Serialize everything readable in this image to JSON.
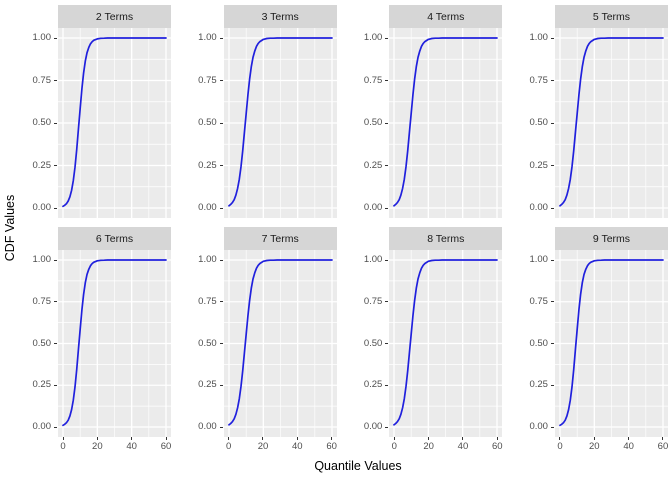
{
  "colors": {
    "page_bg": "#FFFFFF",
    "panel_bg": "#EBEBEB",
    "strip_bg": "#D6D6D6",
    "grid": "#FFFFFF",
    "curve": "#2020DD",
    "tick_text": "#4D4D4D",
    "tick_mark": "#333333",
    "title_text": "#000000"
  },
  "chart_data": {
    "type": "line",
    "title": "",
    "xlabel": "Quantile Values",
    "ylabel": "CDF Values",
    "xlim": [
      0,
      60
    ],
    "ylim": [
      0,
      1
    ],
    "grid": "on",
    "legend": "none",
    "x_ticks": [
      0,
      20,
      40,
      60
    ],
    "x_tick_labels": [
      "0",
      "20",
      "40",
      "60"
    ],
    "y_ticks": [
      0,
      0.25,
      0.5,
      0.75,
      1
    ],
    "y_tick_labels": [
      "0.00",
      "0.25",
      "0.50",
      "0.75",
      "1.00"
    ],
    "x_minor": [
      10,
      30,
      50
    ],
    "y_minor": [
      0.125,
      0.375,
      0.625,
      0.875
    ],
    "x": [
      0,
      1,
      2,
      3,
      4,
      5,
      6,
      7,
      8,
      9,
      10,
      11,
      12,
      13,
      14,
      15,
      16,
      17,
      18,
      20,
      22,
      24,
      26,
      28,
      30,
      35,
      40,
      45,
      50,
      55,
      60
    ],
    "facets": [
      {
        "label": "2 Terms",
        "y": [
          0.01,
          0.016,
          0.025,
          0.041,
          0.066,
          0.104,
          0.161,
          0.24,
          0.343,
          0.463,
          0.587,
          0.701,
          0.794,
          0.864,
          0.913,
          0.945,
          0.966,
          0.979,
          0.987,
          0.995,
          0.998,
          0.999,
          1,
          1,
          1,
          1,
          1,
          1,
          1,
          1,
          1
        ]
      },
      {
        "label": "3 Terms",
        "y": [
          0.013,
          0.021,
          0.032,
          0.049,
          0.076,
          0.115,
          0.169,
          0.243,
          0.336,
          0.444,
          0.557,
          0.664,
          0.757,
          0.831,
          0.886,
          0.924,
          0.951,
          0.968,
          0.979,
          0.992,
          0.997,
          0.999,
          0.999,
          1,
          1,
          1,
          1,
          1,
          1,
          1,
          1
        ]
      },
      {
        "label": "4 Terms",
        "y": [
          0.013,
          0.021,
          0.032,
          0.049,
          0.076,
          0.115,
          0.169,
          0.243,
          0.336,
          0.444,
          0.557,
          0.664,
          0.757,
          0.831,
          0.886,
          0.924,
          0.951,
          0.968,
          0.979,
          0.992,
          0.997,
          0.999,
          0.999,
          1,
          1,
          1,
          1,
          1,
          1,
          1,
          1
        ]
      },
      {
        "label": "5 Terms",
        "y": [
          0.013,
          0.021,
          0.032,
          0.049,
          0.076,
          0.115,
          0.169,
          0.243,
          0.336,
          0.444,
          0.557,
          0.664,
          0.757,
          0.831,
          0.886,
          0.924,
          0.951,
          0.968,
          0.979,
          0.992,
          0.997,
          0.999,
          0.999,
          1,
          1,
          1,
          1,
          1,
          1,
          1,
          1
        ]
      },
      {
        "label": "6 Terms",
        "y": [
          0.01,
          0.016,
          0.025,
          0.041,
          0.066,
          0.104,
          0.161,
          0.24,
          0.343,
          0.463,
          0.587,
          0.701,
          0.794,
          0.864,
          0.913,
          0.945,
          0.966,
          0.979,
          0.987,
          0.995,
          0.998,
          0.999,
          1,
          1,
          1,
          1,
          1,
          1,
          1,
          1,
          1
        ]
      },
      {
        "label": "7 Terms",
        "y": [
          0.013,
          0.021,
          0.032,
          0.049,
          0.076,
          0.115,
          0.169,
          0.243,
          0.336,
          0.444,
          0.557,
          0.664,
          0.757,
          0.831,
          0.886,
          0.924,
          0.951,
          0.968,
          0.979,
          0.992,
          0.997,
          0.999,
          0.999,
          1,
          1,
          1,
          1,
          1,
          1,
          1,
          1
        ]
      },
      {
        "label": "8 Terms",
        "y": [
          0.013,
          0.021,
          0.032,
          0.049,
          0.076,
          0.115,
          0.169,
          0.243,
          0.336,
          0.444,
          0.557,
          0.664,
          0.757,
          0.831,
          0.886,
          0.924,
          0.951,
          0.968,
          0.979,
          0.992,
          0.997,
          0.999,
          0.999,
          1,
          1,
          1,
          1,
          1,
          1,
          1,
          1
        ]
      },
      {
        "label": "9 Terms",
        "y": [
          0.01,
          0.016,
          0.025,
          0.041,
          0.066,
          0.104,
          0.161,
          0.24,
          0.343,
          0.463,
          0.587,
          0.701,
          0.794,
          0.864,
          0.913,
          0.945,
          0.966,
          0.979,
          0.987,
          0.995,
          0.998,
          0.999,
          1,
          1,
          1,
          1,
          1,
          1,
          1,
          1,
          1
        ]
      }
    ]
  }
}
